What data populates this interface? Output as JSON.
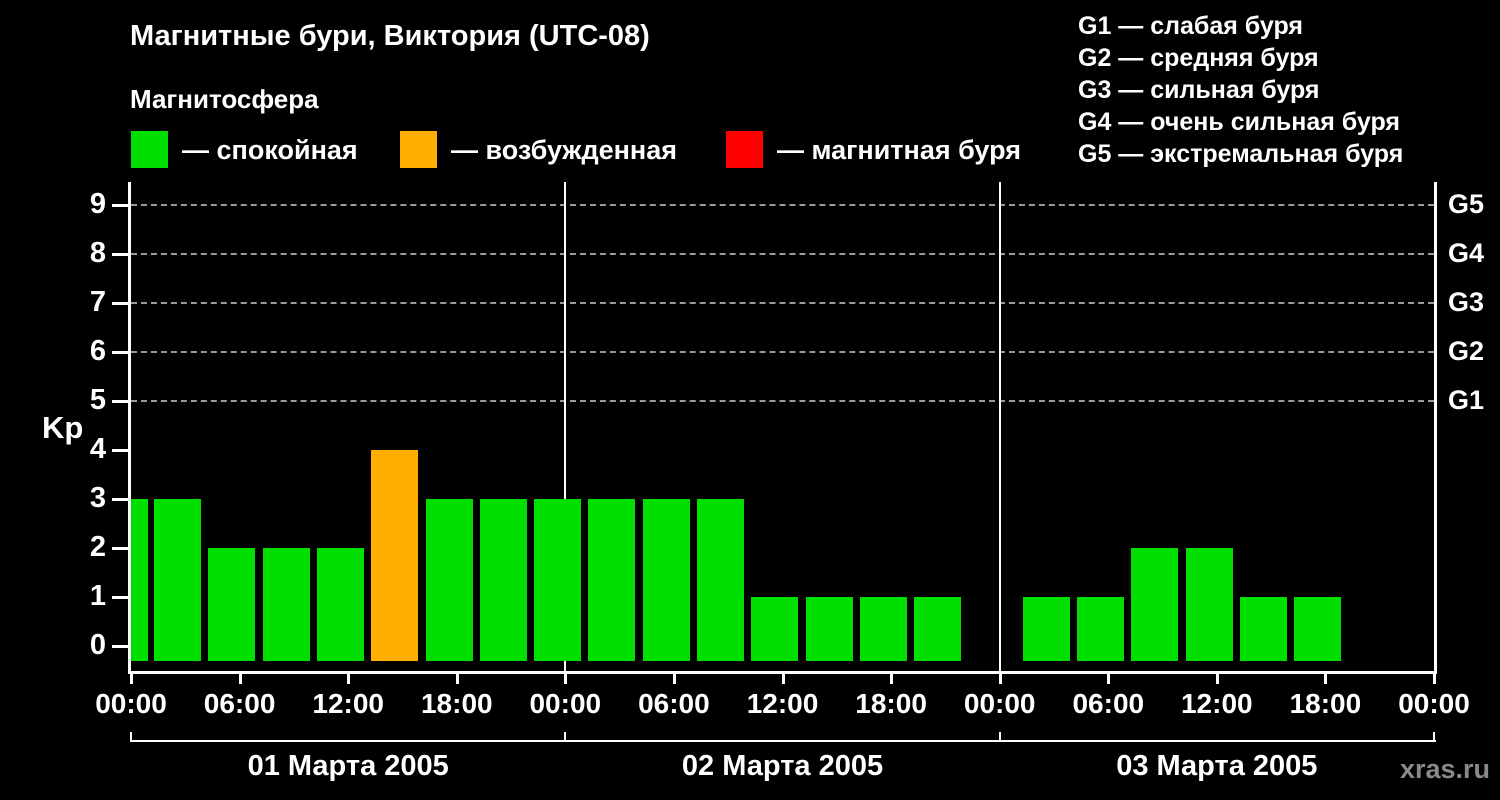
{
  "title": "Магнитные бури, Виктория (UTC-08)",
  "subtitle": "Магнитосфера",
  "legend": {
    "items": [
      {
        "label": "— спокойная",
        "color": "#00DF00"
      },
      {
        "label": "— возбужденная",
        "color": "#FFAE00"
      },
      {
        "label": "— магнитная буря",
        "color": "#FF0000"
      }
    ]
  },
  "g_legend": [
    "G1 — слабая буря",
    "G2 — средняя буря",
    "G3 — сильная буря",
    "G4 — очень сильная буря",
    "G5 — экстремальная буря"
  ],
  "watermark": "xras.ru",
  "chart_data": {
    "type": "bar",
    "title": "Магнитные бури, Виктория (UTC-08)",
    "ylabel": "Kp",
    "ylim": [
      0,
      9
    ],
    "y_ticks": [
      0,
      1,
      2,
      3,
      4,
      5,
      6,
      7,
      8,
      9
    ],
    "grid_levels": [
      5,
      6,
      7,
      8,
      9
    ],
    "grid_color": "#9a9a9a",
    "right_axis_labels": [
      {
        "label": "G1",
        "kp": 5
      },
      {
        "label": "G2",
        "kp": 6
      },
      {
        "label": "G3",
        "kp": 7
      },
      {
        "label": "G4",
        "kp": 8
      },
      {
        "label": "G5",
        "kp": 9
      }
    ],
    "x_tick_labels": [
      "00:00",
      "06:00",
      "12:00",
      "18:00",
      "00:00",
      "06:00",
      "12:00",
      "18:00",
      "00:00",
      "06:00",
      "12:00",
      "18:00",
      "00:00"
    ],
    "hours_per_bar": 3,
    "days": [
      {
        "label": "01 Марта 2005",
        "kp": [
          3,
          2,
          2,
          2,
          4,
          3,
          3,
          3
        ]
      },
      {
        "label": "02 Марта 2005",
        "kp": [
          3,
          3,
          3,
          1,
          1,
          1,
          1,
          null
        ]
      },
      {
        "label": "03 Марта 2005",
        "kp": [
          1,
          1,
          2,
          2,
          1,
          1,
          null,
          null
        ]
      }
    ],
    "leading_partial_bar_kp": 3,
    "colors": {
      "quiet": "#00DF00",
      "unsettled": "#FFAE00",
      "storm": "#FF0000"
    },
    "color_rule": "kp<4 quiet(green), kp=4 unsettled(orange), kp>=5 storm(red)"
  }
}
